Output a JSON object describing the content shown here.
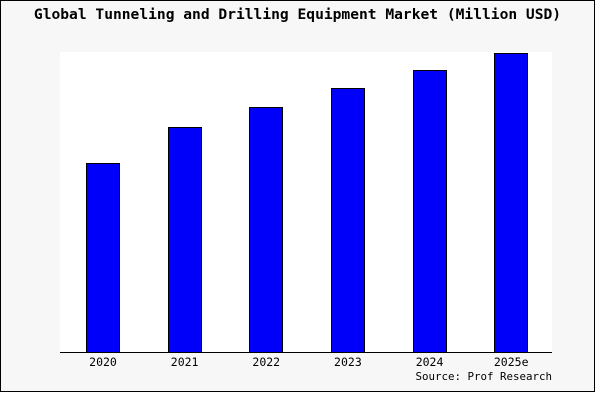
{
  "page": {
    "background_color": "#ffffff",
    "panel_background_color": "#f7f7f7",
    "plot_background_color": "#ffffff",
    "panel_border_color": "#000000",
    "panel_shadow_color": "#a6a6a6"
  },
  "chart_data": {
    "type": "bar",
    "title": "Global Tunneling and Drilling Equipment Market (Million USD)",
    "categories": [
      "2020",
      "2021",
      "2022",
      "2023",
      "2024",
      "2025e"
    ],
    "values": [
      63.2,
      75.4,
      82.0,
      88.3,
      94.3,
      100.0
    ],
    "value_scale_note": "y-axis has no tick labels; values are relative bar heights with tallest bar (2025e) normalized to 100",
    "units": "Million USD",
    "bar_color": "#0000fa",
    "bar_border_color": "#000000",
    "axis_color": "#000000",
    "grid": false,
    "legend": false,
    "xlabel": "",
    "ylabel": "",
    "source_label": "Source: Prof Research"
  }
}
